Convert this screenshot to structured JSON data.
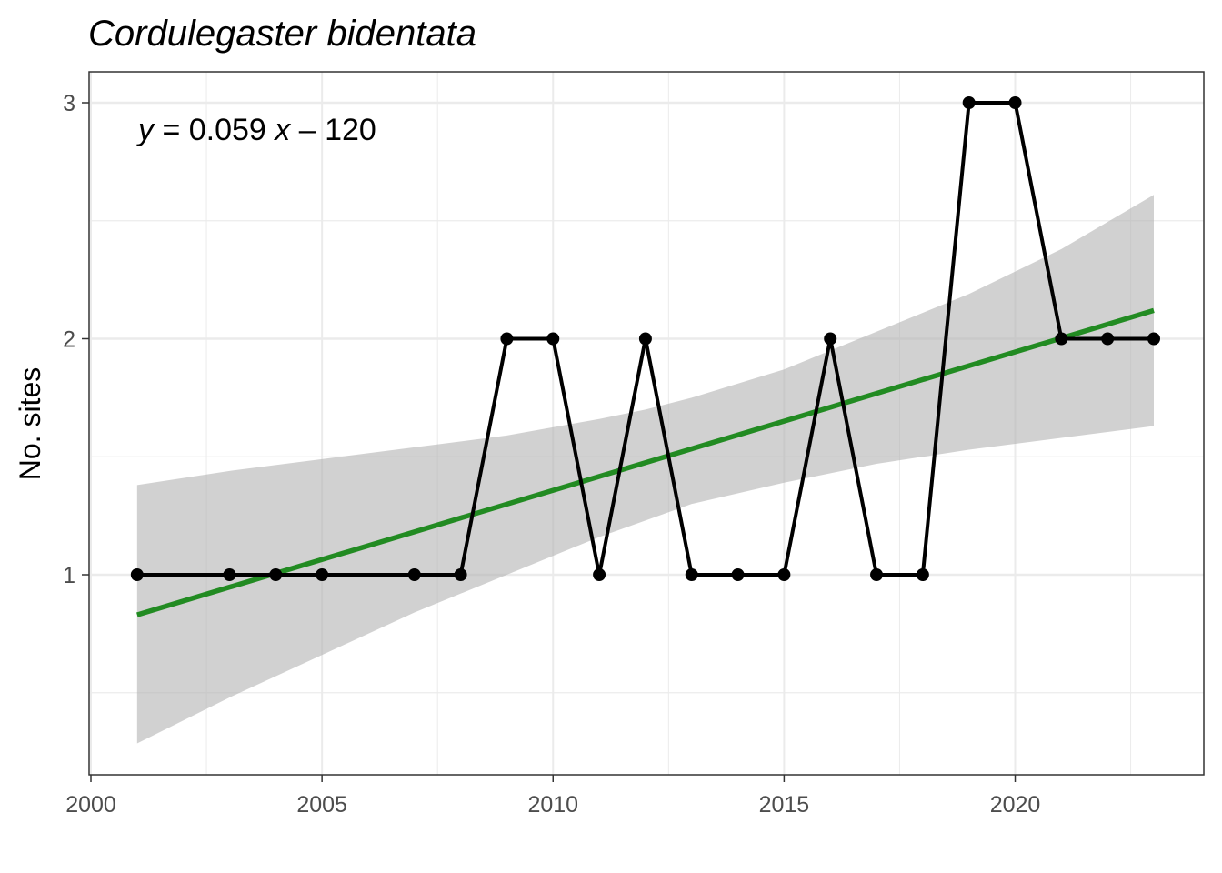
{
  "chart_data": {
    "type": "line",
    "title": "Cordulegaster bidentata",
    "xlabel": "",
    "ylabel": "No. sites",
    "xlim": [
      2000,
      2024
    ],
    "ylim": [
      0.27,
      3.13
    ],
    "x_ticks": [
      2000,
      2005,
      2010,
      2015,
      2020
    ],
    "y_ticks": [
      1,
      2,
      3
    ],
    "grid": true,
    "colors": {
      "series": "#000000",
      "fit": "#228B22",
      "ribbon": "#b3b3b3"
    },
    "series": [
      {
        "x": [
          2001,
          2003,
          2004,
          2005,
          2007,
          2008,
          2009,
          2010,
          2011,
          2012,
          2013,
          2014,
          2015,
          2016,
          2017,
          2018,
          2019,
          2020,
          2021,
          2022,
          2023
        ],
        "values": [
          1,
          1,
          1,
          1,
          1,
          1,
          2,
          2,
          1,
          2,
          1,
          1,
          1,
          2,
          1,
          1,
          3,
          3,
          2,
          2,
          2
        ]
      }
    ],
    "fit": {
      "x": [
        2001,
        2023
      ],
      "y": [
        0.83,
        2.12
      ],
      "ci_x": [
        2001,
        2003,
        2005,
        2007,
        2009,
        2011,
        2012,
        2013,
        2015,
        2017,
        2019,
        2021,
        2023
      ],
      "ci_lower": [
        0.285,
        0.48,
        0.66,
        0.84,
        1.0,
        1.16,
        1.23,
        1.3,
        1.39,
        1.47,
        1.53,
        1.58,
        1.63
      ],
      "ci_upper": [
        1.38,
        1.44,
        1.49,
        1.54,
        1.59,
        1.66,
        1.7,
        1.75,
        1.87,
        2.03,
        2.19,
        2.38,
        2.61
      ]
    },
    "annotation": {
      "y_var": "y",
      "eq_mid": " = 0.059 ",
      "x_var": "x",
      "eq_end": " – 120"
    }
  }
}
